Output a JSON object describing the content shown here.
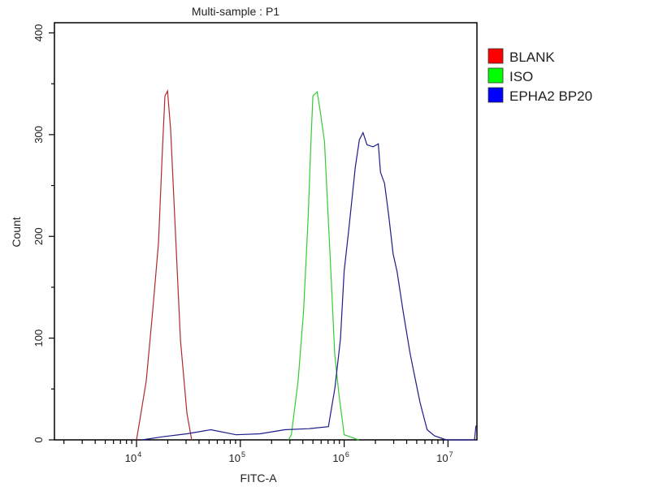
{
  "chart_data": {
    "type": "line",
    "title": "Multi-sample : P1",
    "xlabel": "FITC-A",
    "ylabel": "Count",
    "xscale": "log",
    "xlim": [
      1620,
      19000000
    ],
    "ylim": [
      0,
      410
    ],
    "yticks": [
      0,
      100,
      200,
      300,
      400
    ],
    "xticks": [
      {
        "value": 10000,
        "base": "10",
        "exp": "4"
      },
      {
        "value": 100000,
        "base": "10",
        "exp": "5"
      },
      {
        "value": 1000000,
        "base": "10",
        "exp": "6"
      },
      {
        "value": 10000000,
        "base": "10",
        "exp": "7"
      }
    ],
    "grid": false,
    "legend_position": "right",
    "series": [
      {
        "name": "BLANK",
        "color": "#b22a2a",
        "swatch": "#ff0000",
        "x": [
          10000,
          10700,
          12400,
          14400,
          16300,
          17800,
          18800,
          19900,
          21300,
          23800,
          26500,
          30600,
          34000
        ],
        "y": [
          0,
          18,
          58,
          130,
          194,
          287,
          338,
          343,
          305,
          201,
          98,
          26,
          0
        ]
      },
      {
        "name": "ISO",
        "color": "#33cc33",
        "swatch": "#00ff00",
        "x": [
          290000,
          310000,
          360000,
          406000,
          450000,
          476000,
          500000,
          550000,
          590000,
          647000,
          680000,
          744000,
          810000,
          890000,
          1000000,
          1380000
        ],
        "y": [
          0,
          5,
          58,
          126,
          219,
          287,
          338,
          342,
          322,
          293,
          247,
          166,
          85,
          45,
          5,
          0
        ]
      },
      {
        "name": "EPHA2 BP20",
        "color": "#1c1c8a",
        "swatch": "#0000ff",
        "x": [
          11300,
          17800,
          30600,
          52000,
          91000,
          155000,
          268000,
          460000,
          705000,
          815000,
          920000,
          1000000,
          1100000,
          1280000,
          1400000,
          1520000,
          1660000,
          1900000,
          2130000,
          2240000,
          2450000,
          2690000,
          2960000,
          3240000,
          3700000,
          4300000,
          4700000,
          5370000,
          6300000,
          7400000,
          9600000,
          18000000,
          18600000
        ],
        "y": [
          0,
          3,
          6,
          10,
          5,
          6,
          10,
          11,
          13,
          51,
          99,
          166,
          204,
          268,
          295,
          302,
          290,
          288,
          291,
          263,
          252,
          220,
          183,
          165,
          126,
          86,
          66,
          37,
          10,
          4,
          0,
          0,
          14
        ]
      }
    ]
  }
}
